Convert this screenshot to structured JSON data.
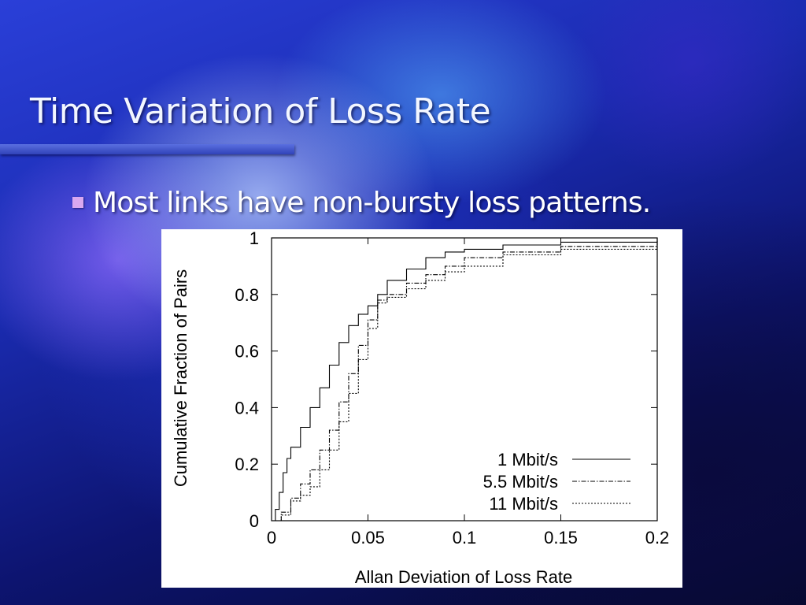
{
  "slide": {
    "title": "Time Variation of Loss Rate",
    "bullet": "Most links have non-bursty loss patterns."
  },
  "colors": {
    "title_text": "#f2f6ff",
    "rule": "#3f54c8",
    "bullet_marker": "#d9a8f0",
    "chart_background": "#ffffff",
    "chart_ink": "#000000"
  },
  "chart_data": {
    "type": "line",
    "title": "",
    "xlabel": "Allan Deviation of Loss Rate",
    "ylabel": "Cumulative Fraction of Pairs",
    "xlim": [
      0,
      0.2
    ],
    "ylim": [
      0,
      1
    ],
    "x_ticks": [
      "0",
      "0.05",
      "0.1",
      "0.15",
      "0.2"
    ],
    "y_ticks": [
      "0",
      "0.2",
      "0.4",
      "0.6",
      "0.8",
      "1"
    ],
    "grid": false,
    "legend": "bottom-right",
    "series": [
      {
        "name": "1 Mbit/s",
        "style": "solid",
        "x": [
          0,
          0.002,
          0.004,
          0.006,
          0.008,
          0.01,
          0.015,
          0.02,
          0.025,
          0.03,
          0.035,
          0.04,
          0.045,
          0.05,
          0.055,
          0.06,
          0.07,
          0.08,
          0.09,
          0.1,
          0.12,
          0.15,
          0.2
        ],
        "y": [
          0,
          0.04,
          0.1,
          0.17,
          0.22,
          0.26,
          0.33,
          0.4,
          0.47,
          0.55,
          0.63,
          0.69,
          0.73,
          0.76,
          0.8,
          0.85,
          0.89,
          0.93,
          0.95,
          0.96,
          0.975,
          0.985,
          1
        ]
      },
      {
        "name": "5.5 Mbit/s",
        "style": "dash-dot",
        "x": [
          0,
          0.005,
          0.01,
          0.015,
          0.02,
          0.025,
          0.03,
          0.035,
          0.04,
          0.045,
          0.05,
          0.055,
          0.06,
          0.07,
          0.08,
          0.09,
          0.1,
          0.12,
          0.15,
          0.2
        ],
        "y": [
          0,
          0.03,
          0.08,
          0.13,
          0.18,
          0.25,
          0.32,
          0.42,
          0.52,
          0.62,
          0.71,
          0.78,
          0.8,
          0.84,
          0.87,
          0.9,
          0.93,
          0.95,
          0.97,
          0.99
        ]
      },
      {
        "name": "11 Mbit/s",
        "style": "dotted",
        "x": [
          0,
          0.005,
          0.01,
          0.015,
          0.02,
          0.025,
          0.03,
          0.035,
          0.04,
          0.045,
          0.05,
          0.055,
          0.06,
          0.07,
          0.08,
          0.09,
          0.1,
          0.12,
          0.15,
          0.2
        ],
        "y": [
          0,
          0.02,
          0.07,
          0.09,
          0.12,
          0.18,
          0.25,
          0.35,
          0.45,
          0.57,
          0.68,
          0.77,
          0.79,
          0.82,
          0.85,
          0.88,
          0.9,
          0.94,
          0.96,
          0.99
        ]
      }
    ]
  }
}
